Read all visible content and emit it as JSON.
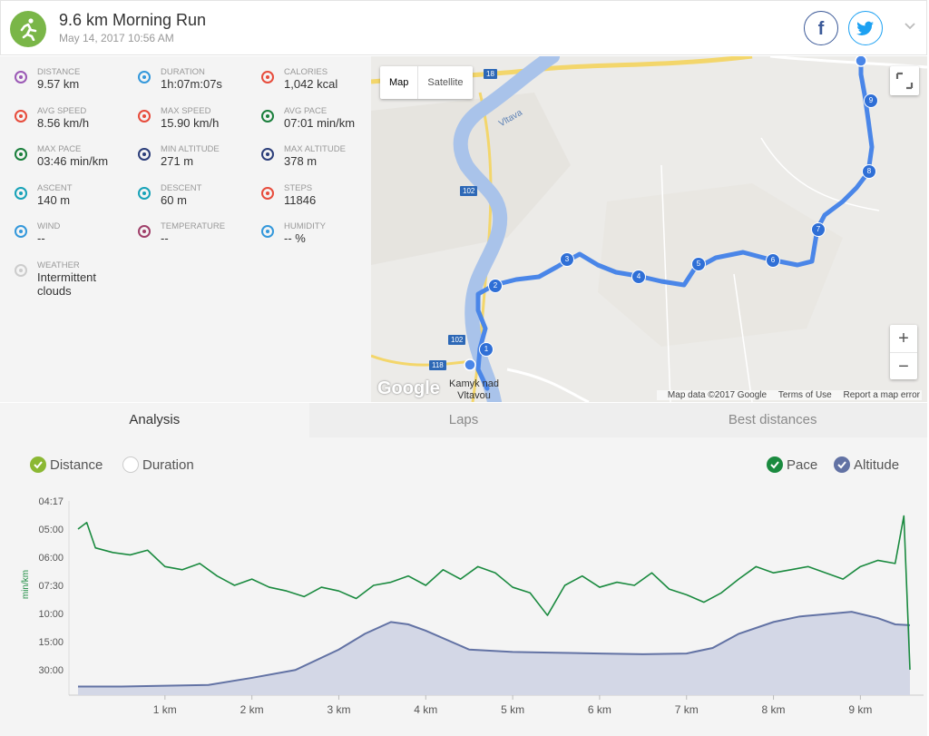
{
  "activity": {
    "title": "9.6 km Morning Run",
    "datetime": "May 14, 2017 10:56 AM"
  },
  "share": {
    "facebook": "f"
  },
  "stats": [
    {
      "label": "DISTANCE",
      "value": "9.57 km",
      "icon": "distance-icon",
      "color": "#9b59b6"
    },
    {
      "label": "DURATION",
      "value": "1h:07m:07s",
      "icon": "stopwatch-icon",
      "color": "#3498db"
    },
    {
      "label": "CALORIES",
      "value": "1,042 kcal",
      "icon": "flame-icon",
      "color": "#e74c3c"
    },
    {
      "label": "AVG SPEED",
      "value": "8.56 km/h",
      "icon": "speedometer-icon",
      "color": "#e74c3c"
    },
    {
      "label": "MAX SPEED",
      "value": "15.90 km/h",
      "icon": "speedometer-icon",
      "color": "#e74c3c"
    },
    {
      "label": "AVG PACE",
      "value": "07:01 min/km",
      "icon": "pace-gauge-icon",
      "color": "#1a7f3c"
    },
    {
      "label": "MAX PACE",
      "value": "03:46 min/km",
      "icon": "pace-gauge-icon",
      "color": "#1a7f3c"
    },
    {
      "label": "MIN ALTITUDE",
      "value": "271 m",
      "icon": "mountain-icon",
      "color": "#2c3e7a"
    },
    {
      "label": "MAX ALTITUDE",
      "value": "378 m",
      "icon": "mountain-icon",
      "color": "#2c3e7a"
    },
    {
      "label": "ASCENT",
      "value": "140 m",
      "icon": "ascent-icon",
      "color": "#17a2b8"
    },
    {
      "label": "DESCENT",
      "value": "60 m",
      "icon": "descent-icon",
      "color": "#17a2b8"
    },
    {
      "label": "STEPS",
      "value": "11846",
      "icon": "footsteps-icon",
      "color": "#e74c3c"
    },
    {
      "label": "WIND",
      "value": "--",
      "icon": "wind-icon",
      "color": "#3498db"
    },
    {
      "label": "TEMPERATURE",
      "value": "--",
      "icon": "thermometer-icon",
      "color": "#a0406a"
    },
    {
      "label": "HUMIDITY",
      "value": "-- %",
      "icon": "humidity-icon",
      "color": "#3498db"
    },
    {
      "label": "WEATHER",
      "value": "Intermittent clouds",
      "icon": "cloud-sun-icon",
      "color": "#cccccc"
    }
  ],
  "map": {
    "type_map": "Map",
    "type_satellite": "Satellite",
    "zoom_in": "+",
    "zoom_out": "−",
    "google_logo": "Google",
    "data_credit": "Map data ©2017 Google",
    "terms": "Terms of Use",
    "report": "Report a map error",
    "river_label": "Vltava",
    "town_label_line1": "Kamyk nad",
    "town_label_line2": "Vltavou",
    "road_18": "18",
    "road_102a": "102",
    "road_102b": "102",
    "road_118": "118",
    "route_markers": [
      "1",
      "2",
      "3",
      "4",
      "5",
      "6",
      "7",
      "8",
      "9"
    ]
  },
  "tabs": [
    {
      "label": "Analysis",
      "active": true
    },
    {
      "label": "Laps",
      "active": false
    },
    {
      "label": "Best distances",
      "active": false
    }
  ],
  "toggles": {
    "distance": "Distance",
    "duration": "Duration",
    "pace": "Pace",
    "altitude": "Altitude"
  },
  "colors": {
    "pace": "#1a8a3f",
    "altitude_line": "#6272a4",
    "altitude_fill": "#d3d7e6",
    "route": "#4a86e8",
    "accent_green": "#7ab648"
  },
  "chart_data": {
    "type": "line",
    "ylabel": "min/km",
    "x_ticks": [
      "1 km",
      "2 km",
      "3 km",
      "4 km",
      "5 km",
      "6 km",
      "7 km",
      "8 km",
      "9 km"
    ],
    "y_ticks": [
      "04:17",
      "05:00",
      "06:00",
      "07:30",
      "10:00",
      "15:00",
      "30:00"
    ],
    "xlim": [
      0,
      9.57
    ],
    "series": [
      {
        "name": "Pace",
        "x": [
          0.0,
          0.1,
          0.2,
          0.4,
          0.6,
          0.8,
          1.0,
          1.2,
          1.4,
          1.6,
          1.8,
          2.0,
          2.2,
          2.4,
          2.6,
          2.8,
          3.0,
          3.2,
          3.4,
          3.6,
          3.8,
          4.0,
          4.2,
          4.4,
          4.6,
          4.8,
          5.0,
          5.2,
          5.4,
          5.6,
          5.8,
          6.0,
          6.2,
          6.4,
          6.6,
          6.8,
          7.0,
          7.2,
          7.4,
          7.6,
          7.8,
          8.0,
          8.2,
          8.4,
          8.6,
          8.8,
          9.0,
          9.2,
          9.4,
          9.5,
          9.57
        ],
        "values": [
          "05:00",
          "04:50",
          "05:40",
          "05:50",
          "05:55",
          "05:45",
          "06:30",
          "06:40",
          "06:20",
          "07:00",
          "07:30",
          "07:10",
          "07:40",
          "08:00",
          "08:30",
          "07:40",
          "08:00",
          "08:40",
          "07:30",
          "07:20",
          "07:00",
          "07:30",
          "06:40",
          "07:10",
          "06:30",
          "06:50",
          "07:40",
          "08:10",
          "10:20",
          "07:30",
          "07:00",
          "07:40",
          "07:20",
          "07:30",
          "06:50",
          "07:50",
          "08:20",
          "09:00",
          "08:10",
          "07:10",
          "06:30",
          "06:50",
          "06:40",
          "06:30",
          "06:50",
          "07:10",
          "06:30",
          "06:10",
          "06:20",
          "04:40",
          "30:00"
        ]
      },
      {
        "name": "Altitude",
        "x": [
          0.0,
          0.5,
          1.0,
          1.5,
          2.0,
          2.5,
          3.0,
          3.3,
          3.6,
          3.8,
          4.0,
          4.5,
          5.0,
          5.5,
          6.0,
          6.5,
          7.0,
          7.3,
          7.6,
          8.0,
          8.3,
          8.6,
          8.9,
          9.2,
          9.4,
          9.57
        ],
        "values_m": [
          271,
          271,
          272,
          273,
          282,
          292,
          318,
          338,
          353,
          350,
          342,
          318,
          315,
          314,
          313,
          312,
          313,
          320,
          338,
          353,
          360,
          363,
          366,
          358,
          350,
          349
        ]
      }
    ]
  }
}
